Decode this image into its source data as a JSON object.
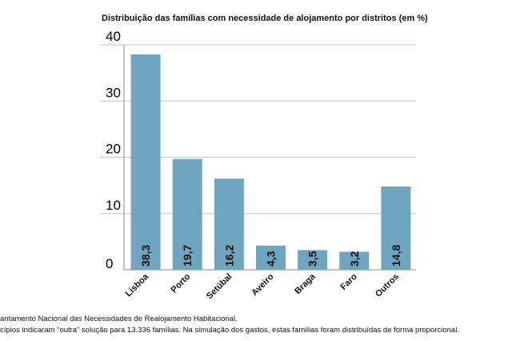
{
  "chart_data": {
    "type": "bar",
    "title": "Distribuição das famílias com necessidade de alojamento por distritos (em %)",
    "categories": [
      "Lisboa",
      "Porto",
      "Setúbal",
      "Aveiro",
      "Braga",
      "Faro",
      "Outros"
    ],
    "values": [
      38.3,
      19.7,
      16.2,
      4.3,
      3.5,
      3.2,
      14.8
    ],
    "data_labels": [
      "38,3",
      "19,7",
      "16,2",
      "4,3",
      "3,5",
      "3,2",
      "14,8"
    ],
    "yticks": [
      "0",
      "10",
      "20",
      "30",
      "40"
    ],
    "ylim": [
      0,
      40
    ],
    "grid": true,
    "bar_color": "#6fa5bf",
    "xlabel": "",
    "ylabel": ""
  },
  "notes": [
    "antamento Nacional das Necessidades de Realojamento Habitacional.",
    "cípios indicaram “outra” solução para 13.336 famílias. Na simulação dos gastos, estas famílias foram distribuídas de forma proporcional."
  ]
}
